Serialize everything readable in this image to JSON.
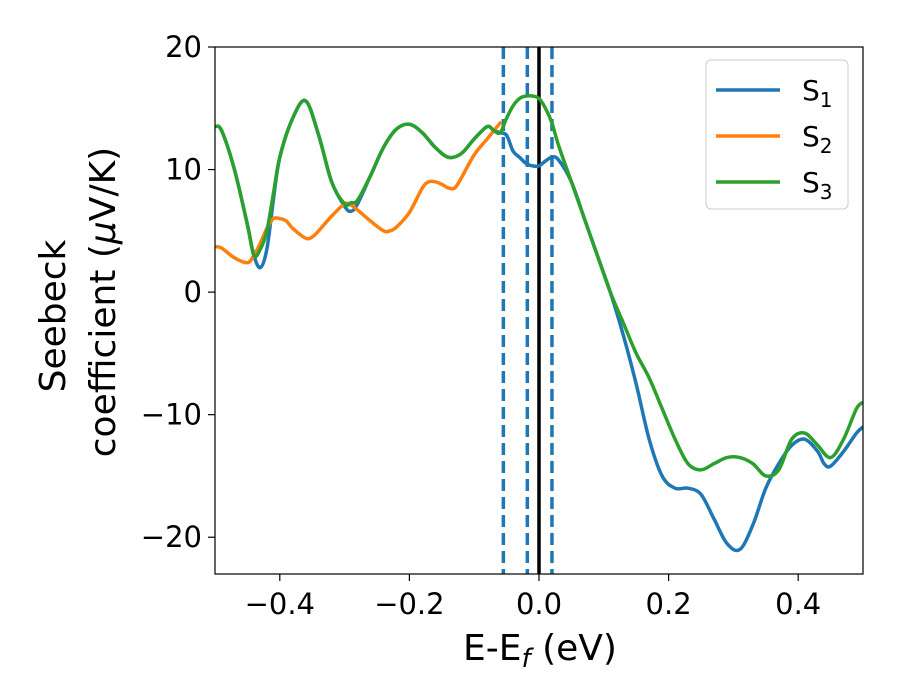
{
  "chart_data": {
    "type": "line",
    "title": "",
    "xlabel": "E-E",
    "xlabel_sub": "f",
    "xlabel_unit": " (eV)",
    "ylabel_line1": "Seebeck",
    "ylabel_line2": "coefficient  (",
    "ylabel_mu": "μ",
    "ylabel_unit": "V/K)",
    "xlim": [
      -0.5,
      0.5
    ],
    "ylim": [
      -23,
      20
    ],
    "xticks": [
      -0.4,
      -0.2,
      0.0,
      0.2,
      0.4
    ],
    "xtick_labels": [
      "−0.4",
      "−0.2",
      "0.0",
      "0.2",
      "0.4"
    ],
    "yticks": [
      -20,
      -10,
      0,
      10,
      20
    ],
    "ytick_labels": [
      "−20",
      "−10",
      "0",
      "10",
      "20"
    ],
    "grid": false,
    "legend_position": "top-right",
    "reference_lines": [
      {
        "x": -0.055,
        "style": "dashed",
        "color": "#1f77b4"
      },
      {
        "x": -0.018,
        "style": "dashed",
        "color": "#1f77b4"
      },
      {
        "x": 0.0,
        "style": "solid",
        "color": "#000000"
      },
      {
        "x": 0.02,
        "style": "dashed",
        "color": "#1f77b4"
      }
    ],
    "series": [
      {
        "name": "S",
        "sub": "1",
        "color": "#1f77b4",
        "x": [
          -0.5,
          -0.49,
          -0.47,
          -0.45,
          -0.44,
          -0.43,
          -0.42,
          -0.41,
          -0.4,
          -0.38,
          -0.36,
          -0.34,
          -0.32,
          -0.3,
          -0.29,
          -0.28,
          -0.26,
          -0.24,
          -0.22,
          -0.2,
          -0.18,
          -0.16,
          -0.14,
          -0.12,
          -0.1,
          -0.08,
          -0.07,
          -0.06,
          -0.05,
          -0.04,
          -0.03,
          -0.02,
          -0.01,
          0.0,
          0.01,
          0.02,
          0.03,
          0.05,
          0.07,
          0.09,
          0.11,
          0.13,
          0.15,
          0.17,
          0.19,
          0.21,
          0.23,
          0.25,
          0.27,
          0.29,
          0.31,
          0.33,
          0.35,
          0.37,
          0.39,
          0.41,
          0.43,
          0.44,
          0.45,
          0.47,
          0.49,
          0.5
        ],
        "y": [
          13.5,
          13.2,
          10.0,
          5.5,
          3.0,
          2.0,
          3.5,
          7.5,
          11.0,
          14.2,
          15.6,
          12.8,
          9.0,
          7.0,
          6.6,
          7.2,
          9.5,
          11.8,
          13.3,
          13.7,
          13.0,
          11.8,
          11.0,
          11.3,
          12.5,
          13.5,
          13.2,
          13.0,
          12.8,
          11.5,
          11.0,
          10.5,
          10.3,
          10.3,
          10.7,
          11.0,
          10.8,
          9.0,
          6.0,
          3.0,
          0.0,
          -3.5,
          -7.5,
          -12.0,
          -15.0,
          -16.0,
          -16.0,
          -16.5,
          -18.5,
          -20.5,
          -21.0,
          -19.0,
          -16.0,
          -14.0,
          -12.5,
          -12.0,
          -13.0,
          -14.0,
          -14.2,
          -13.0,
          -11.5,
          -11.0
        ]
      },
      {
        "name": "S",
        "sub": "2",
        "color": "#ff7f0e",
        "x": [
          -0.5,
          -0.49,
          -0.47,
          -0.45,
          -0.44,
          -0.43,
          -0.42,
          -0.41,
          -0.4,
          -0.39,
          -0.38,
          -0.36,
          -0.35,
          -0.34,
          -0.32,
          -0.3,
          -0.29,
          -0.28,
          -0.26,
          -0.24,
          -0.23,
          -0.22,
          -0.2,
          -0.18,
          -0.17,
          -0.16,
          -0.15,
          -0.14,
          -0.13,
          -0.12,
          -0.1,
          -0.08,
          -0.06
        ],
        "y": [
          3.7,
          3.6,
          2.8,
          2.4,
          3.0,
          4.0,
          5.2,
          6.0,
          6.0,
          5.8,
          5.2,
          4.4,
          4.5,
          5.0,
          6.2,
          7.2,
          7.1,
          6.7,
          5.8,
          5.0,
          5.0,
          5.3,
          6.5,
          8.5,
          9.0,
          9.0,
          8.8,
          8.5,
          8.5,
          9.3,
          11.2,
          12.5,
          13.8
        ]
      },
      {
        "name": "S",
        "sub": "3",
        "color": "#2ca02c",
        "x": [
          -0.5,
          -0.49,
          -0.47,
          -0.45,
          -0.44,
          -0.43,
          -0.42,
          -0.41,
          -0.4,
          -0.38,
          -0.36,
          -0.34,
          -0.32,
          -0.3,
          -0.29,
          -0.28,
          -0.26,
          -0.24,
          -0.22,
          -0.2,
          -0.18,
          -0.16,
          -0.14,
          -0.12,
          -0.1,
          -0.08,
          -0.07,
          -0.06,
          -0.05,
          -0.04,
          -0.03,
          -0.02,
          -0.01,
          0.0,
          0.01,
          0.02,
          0.03,
          0.05,
          0.07,
          0.09,
          0.11,
          0.13,
          0.15,
          0.17,
          0.19,
          0.21,
          0.23,
          0.25,
          0.27,
          0.29,
          0.31,
          0.33,
          0.35,
          0.37,
          0.39,
          0.41,
          0.43,
          0.45,
          0.47,
          0.49,
          0.5
        ],
        "y": [
          13.5,
          13.2,
          10.0,
          5.5,
          3.0,
          3.5,
          5.0,
          8.0,
          11.0,
          14.2,
          15.6,
          12.8,
          9.0,
          7.2,
          7.3,
          7.5,
          9.5,
          11.8,
          13.3,
          13.7,
          13.0,
          11.8,
          11.0,
          11.3,
          12.5,
          13.5,
          13.2,
          13.0,
          14.2,
          15.2,
          15.8,
          16.0,
          16.0,
          15.8,
          15.0,
          13.8,
          12.0,
          9.0,
          6.0,
          3.0,
          0.0,
          -2.5,
          -5.0,
          -7.0,
          -9.5,
          -12.0,
          -14.0,
          -14.5,
          -14.0,
          -13.5,
          -13.5,
          -14.0,
          -15.0,
          -14.5,
          -12.0,
          -11.5,
          -12.5,
          -13.5,
          -12.0,
          -9.5,
          -9.0
        ]
      }
    ]
  }
}
